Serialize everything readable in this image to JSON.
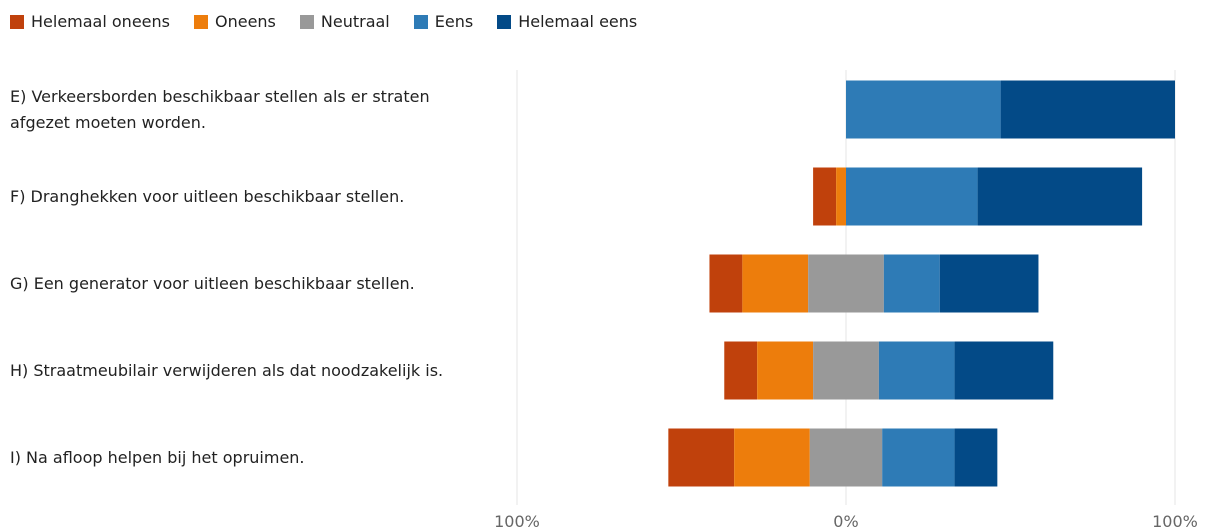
{
  "chart_data": {
    "type": "diverging_stacked_bar",
    "categories": [
      "E) Verkeersborden beschikbaar stellen als er straten afgezet moeten worden.",
      "F) Dranghekken voor uitleen beschikbaar stellen.",
      "G) Een generator voor uitleen beschikbaar stellen.",
      "H) Straatmeubilair verwijderen als dat noodzakelijk is.",
      "I) Na afloop helpen bij het opruimen."
    ],
    "series": [
      {
        "name": "Helemaal oneens",
        "color": "#c0410c",
        "values": [
          0,
          7,
          10,
          10,
          20
        ]
      },
      {
        "name": "Oneens",
        "color": "#ed7d0c",
        "values": [
          0,
          3,
          20,
          17,
          23
        ]
      },
      {
        "name": "Neutraal",
        "color": "#999999",
        "values": [
          0,
          0,
          23,
          20,
          22
        ]
      },
      {
        "name": "Eens",
        "color": "#2e7bb6",
        "values": [
          47,
          40,
          17,
          23,
          22
        ]
      },
      {
        "name": "Helemaal eens",
        "color": "#034a87",
        "values": [
          53,
          50,
          30,
          30,
          13
        ]
      }
    ],
    "xlim": [
      -100,
      100
    ],
    "xticks": [
      {
        "value": -100,
        "label": "100%"
      },
      {
        "value": 0,
        "label": "0%"
      },
      {
        "value": 100,
        "label": "100%"
      }
    ],
    "grid": true,
    "legend": "top-left"
  }
}
